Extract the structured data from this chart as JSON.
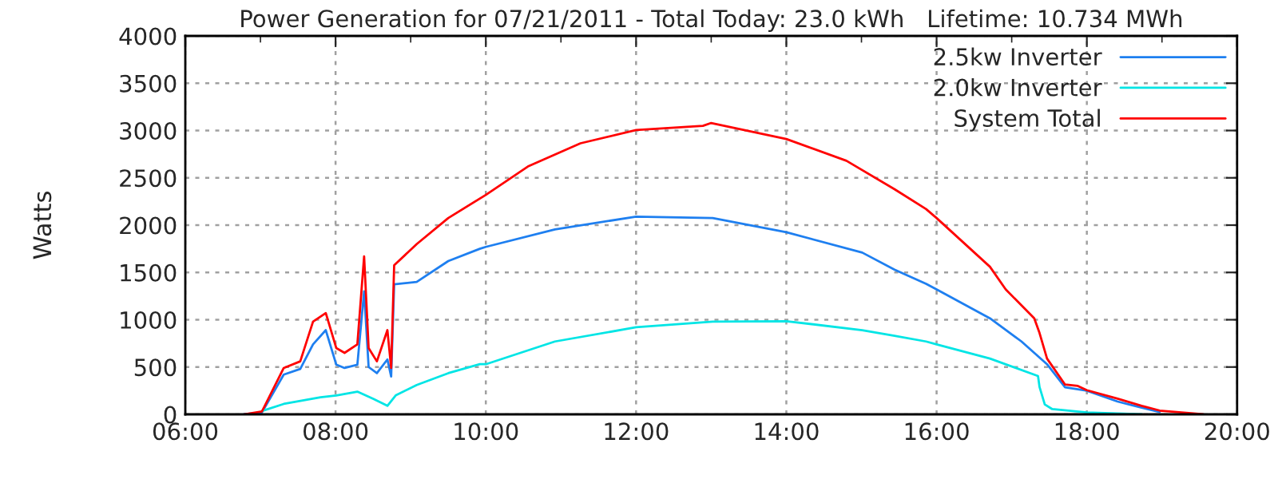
{
  "chart_data": {
    "type": "line",
    "title": "Power Generation for 07/21/2011 - Total Today: 23.0 kWh   Lifetime: 10.734 MWh",
    "ylabel": "Watts",
    "xlim": [
      6,
      20
    ],
    "xticks": [
      {
        "value": 6,
        "label": "06:00"
      },
      {
        "value": 7,
        "label": null
      },
      {
        "value": 8,
        "label": "08:00"
      },
      {
        "value": 9,
        "label": null
      },
      {
        "value": 10,
        "label": "10:00"
      },
      {
        "value": 11,
        "label": null
      },
      {
        "value": 12,
        "label": "12:00"
      },
      {
        "value": 13,
        "label": null
      },
      {
        "value": 14,
        "label": "14:00"
      },
      {
        "value": 15,
        "label": null
      },
      {
        "value": 16,
        "label": "16:00"
      },
      {
        "value": 17,
        "label": null
      },
      {
        "value": 18,
        "label": "18:00"
      },
      {
        "value": 19,
        "label": null
      },
      {
        "value": 20,
        "label": "20:00"
      }
    ],
    "ylim": [
      0,
      4000
    ],
    "yticks": [
      0,
      500,
      1000,
      1500,
      2000,
      2500,
      3000,
      3500,
      4000
    ],
    "grid": true,
    "line_style": "solid",
    "legend": "top right",
    "series": [
      {
        "name": "2.5kw Inverter",
        "color": "#1e7ff0",
        "x": [
          6.78,
          7.02,
          7.31,
          7.53,
          7.7,
          7.87,
          8.01,
          8.12,
          8.29,
          8.38,
          8.44,
          8.55,
          8.69,
          8.74,
          8.78,
          9.08,
          9.5,
          9.92,
          10.0,
          10.92,
          12.0,
          13.02,
          14.0,
          15.01,
          15.44,
          15.86,
          16.0,
          16.71,
          17.13,
          17.47,
          17.71,
          18.0,
          18.41,
          18.73,
          18.97
        ],
        "values": [
          0,
          20,
          420,
          480,
          740,
          890,
          525,
          490,
          525,
          1300,
          500,
          435,
          580,
          400,
          1375,
          1400,
          1620,
          1750,
          1770,
          1955,
          2090,
          2075,
          1925,
          1710,
          1530,
          1380,
          1320,
          1015,
          770,
          530,
          285,
          250,
          135,
          70,
          25
        ]
      },
      {
        "name": "2.0kw Inverter",
        "color": "#00e5e5",
        "x": [
          7.02,
          7.31,
          7.8,
          8.01,
          8.29,
          8.5,
          8.69,
          8.8,
          9.08,
          9.5,
          9.92,
          10.0,
          10.92,
          12.0,
          13.02,
          14.0,
          15.01,
          15.44,
          15.86,
          16.0,
          16.71,
          17.35,
          17.37,
          17.44,
          17.54,
          18.0,
          18.73
        ],
        "values": [
          35,
          110,
          180,
          200,
          240,
          165,
          90,
          200,
          310,
          435,
          530,
          530,
          770,
          920,
          980,
          985,
          890,
          830,
          770,
          740,
          590,
          405,
          290,
          105,
          55,
          20,
          0
        ]
      },
      {
        "name": "System Total",
        "color": "#ff0000",
        "x": [
          6.78,
          7.02,
          7.31,
          7.53,
          7.7,
          7.87,
          8.01,
          8.12,
          8.29,
          8.38,
          8.44,
          8.55,
          8.69,
          8.74,
          8.78,
          9.08,
          9.5,
          10.0,
          10.56,
          11.26,
          12.0,
          12.89,
          13.0,
          14.0,
          14.8,
          15.44,
          15.86,
          16.0,
          16.71,
          16.92,
          17.3,
          17.37,
          17.47,
          17.71,
          17.88,
          18.0,
          18.41,
          18.73,
          18.97,
          19.26,
          19.55
        ],
        "values": [
          0,
          30,
          490,
          560,
          980,
          1070,
          700,
          650,
          740,
          1670,
          700,
          560,
          890,
          490,
          1575,
          1800,
          2075,
          2320,
          2620,
          2865,
          3005,
          3050,
          3080,
          2910,
          2680,
          2380,
          2170,
          2075,
          1560,
          1320,
          1015,
          860,
          590,
          315,
          300,
          255,
          165,
          90,
          40,
          20,
          0
        ]
      }
    ]
  }
}
